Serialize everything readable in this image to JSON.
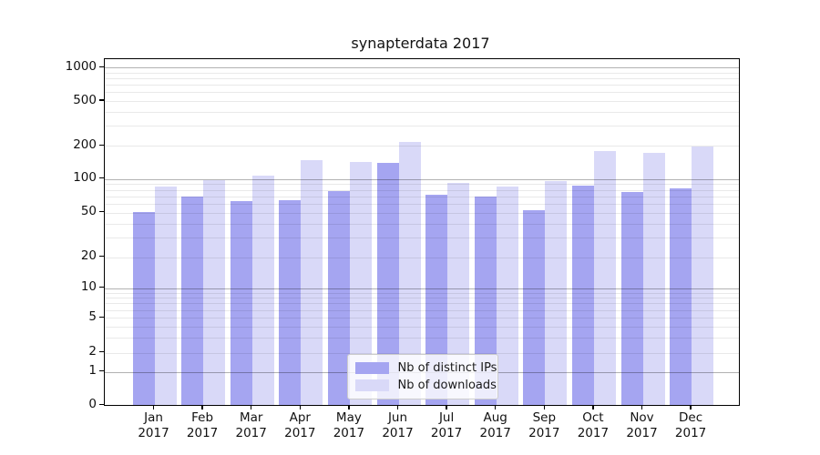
{
  "chart_data": {
    "type": "bar",
    "title": "synapterdata 2017",
    "categories": [
      "Jan",
      "Feb",
      "Mar",
      "Apr",
      "May",
      "Jun",
      "Jul",
      "Aug",
      "Sep",
      "Oct",
      "Nov",
      "Dec"
    ],
    "x_year_label": "2017",
    "series": [
      {
        "name": "Nb of distinct IPs",
        "color": "#a5a5f1",
        "values": [
          51,
          70,
          64,
          65,
          78,
          139,
          73,
          70,
          53,
          88,
          77,
          82
        ]
      },
      {
        "name": "Nb of downloads",
        "color": "#d9d9f8",
        "values": [
          85,
          97,
          108,
          147,
          142,
          215,
          93,
          86,
          96,
          178,
          172,
          196
        ]
      }
    ],
    "xlabel": "",
    "ylabel": "",
    "y_scale": "symlog",
    "y_tick_labels": [
      "0",
      "1",
      "2",
      "5",
      "10",
      "20",
      "50",
      "100",
      "200",
      "500",
      "1000"
    ],
    "y_tick_values": [
      0,
      1,
      2,
      5,
      10,
      20,
      50,
      100,
      200,
      500,
      1000
    ],
    "ylim": [
      0,
      1150
    ],
    "grid": "horizontal, major and minor",
    "legend_position": "lower center inside plot"
  }
}
